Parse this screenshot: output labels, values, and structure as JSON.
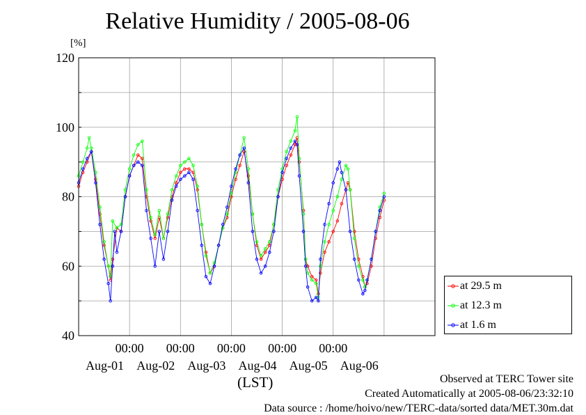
{
  "header": {
    "title": "Relative Humidity / 2005-08-06",
    "unit_label": "[%]",
    "time_label": "(LST)"
  },
  "footer": {
    "line1": "Observed at TERC Tower site",
    "line2": "Created Automatically at 2005-08-06/23:32:10",
    "line3": "Data source : /home/hoivo/new/TERC-data/sorted data/MET.30m.dat"
  },
  "chart_data": {
    "type": "line",
    "title": "Relative Humidity / 2005-08-06",
    "ylabel": "[%]",
    "xlabel": "(LST)",
    "ylim": [
      40,
      120
    ],
    "yticks": [
      "40",
      "60",
      "80",
      "100",
      "120"
    ],
    "xlim": [
      "2005-07-31T00:00",
      "2005-08-07T00:00"
    ],
    "time_ticks": [
      "00:00",
      "00:00",
      "00:00",
      "00:00",
      "00:00"
    ],
    "day_labels": [
      "Aug-01",
      "Aug-02",
      "Aug-03",
      "Aug-04",
      "Aug-05",
      "Aug-06"
    ],
    "grid": true,
    "legend_position": "right",
    "series": [
      {
        "name": "at 29.5 m",
        "color": "#ff0000",
        "points": [
          [
            "2005-07-31T00:00",
            83
          ],
          [
            "2005-07-31T02:00",
            87
          ],
          [
            "2005-07-31T04:00",
            90
          ],
          [
            "2005-07-31T06:00",
            93
          ],
          [
            "2005-07-31T08:00",
            85
          ],
          [
            "2005-07-31T10:00",
            75
          ],
          [
            "2005-07-31T12:00",
            66
          ],
          [
            "2005-07-31T14:00",
            60
          ],
          [
            "2005-07-31T15:00",
            56
          ],
          [
            "2005-07-31T16:00",
            62
          ],
          [
            "2005-07-31T18:00",
            71
          ],
          [
            "2005-07-31T20:00",
            70
          ],
          [
            "2005-07-31T22:00",
            80
          ],
          [
            "2005-08-01T00:00",
            86
          ],
          [
            "2005-08-01T02:00",
            89
          ],
          [
            "2005-08-01T04:00",
            92
          ],
          [
            "2005-08-01T06:00",
            91
          ],
          [
            "2005-08-01T08:00",
            80
          ],
          [
            "2005-08-01T10:00",
            73
          ],
          [
            "2005-08-01T12:00",
            68
          ],
          [
            "2005-08-01T14:00",
            74
          ],
          [
            "2005-08-01T16:00",
            68
          ],
          [
            "2005-08-01T18:00",
            74
          ],
          [
            "2005-08-01T20:00",
            80
          ],
          [
            "2005-08-01T22:00",
            84
          ],
          [
            "2005-08-02T00:00",
            87
          ],
          [
            "2005-08-02T02:00",
            88
          ],
          [
            "2005-08-02T04:00",
            88
          ],
          [
            "2005-08-02T06:00",
            87
          ],
          [
            "2005-08-02T08:00",
            82
          ],
          [
            "2005-08-02T10:00",
            72
          ],
          [
            "2005-08-02T12:00",
            64
          ],
          [
            "2005-08-02T14:00",
            58
          ],
          [
            "2005-08-02T16:00",
            60
          ],
          [
            "2005-08-02T18:00",
            66
          ],
          [
            "2005-08-02T20:00",
            71
          ],
          [
            "2005-08-02T22:00",
            74
          ],
          [
            "2005-08-03T00:00",
            80
          ],
          [
            "2005-08-03T02:00",
            85
          ],
          [
            "2005-08-03T04:00",
            89
          ],
          [
            "2005-08-03T06:00",
            93
          ],
          [
            "2005-08-03T08:00",
            86
          ],
          [
            "2005-08-03T10:00",
            75
          ],
          [
            "2005-08-03T12:00",
            66
          ],
          [
            "2005-08-03T14:00",
            62
          ],
          [
            "2005-08-03T16:00",
            64
          ],
          [
            "2005-08-03T18:00",
            66
          ],
          [
            "2005-08-03T20:00",
            72
          ],
          [
            "2005-08-03T22:00",
            80
          ],
          [
            "2005-08-04T00:00",
            85
          ],
          [
            "2005-08-04T02:00",
            89
          ],
          [
            "2005-08-04T04:00",
            92
          ],
          [
            "2005-08-04T06:00",
            95
          ],
          [
            "2005-08-04T07:00",
            97
          ],
          [
            "2005-08-04T08:00",
            90
          ],
          [
            "2005-08-04T10:00",
            76
          ],
          [
            "2005-08-04T11:00",
            62
          ],
          [
            "2005-08-04T12:00",
            60
          ],
          [
            "2005-08-04T14:00",
            57
          ],
          [
            "2005-08-04T16:00",
            56
          ],
          [
            "2005-08-04T17:00",
            52
          ],
          [
            "2005-08-04T18:00",
            58
          ],
          [
            "2005-08-04T20:00",
            64
          ],
          [
            "2005-08-04T22:00",
            67
          ],
          [
            "2005-08-05T00:00",
            70
          ],
          [
            "2005-08-05T02:00",
            73
          ],
          [
            "2005-08-05T04:00",
            78
          ],
          [
            "2005-08-05T06:00",
            82
          ],
          [
            "2005-08-05T07:00",
            84
          ],
          [
            "2005-08-05T08:00",
            82
          ],
          [
            "2005-08-05T10:00",
            70
          ],
          [
            "2005-08-05T12:00",
            62
          ],
          [
            "2005-08-05T14:00",
            57
          ],
          [
            "2005-08-05T15:00",
            54
          ],
          [
            "2005-08-05T16:00",
            55
          ],
          [
            "2005-08-05T18:00",
            60
          ],
          [
            "2005-08-05T20:00",
            68
          ],
          [
            "2005-08-05T22:00",
            74
          ],
          [
            "2005-08-06T00:00",
            79
          ]
        ]
      },
      {
        "name": "at 12.3 m",
        "color": "#00ff00",
        "points": [
          [
            "2005-07-31T00:00",
            86
          ],
          [
            "2005-07-31T02:00",
            90
          ],
          [
            "2005-07-31T04:00",
            94
          ],
          [
            "2005-07-31T05:00",
            97
          ],
          [
            "2005-07-31T06:00",
            94
          ],
          [
            "2005-07-31T08:00",
            87
          ],
          [
            "2005-07-31T10:00",
            77
          ],
          [
            "2005-07-31T12:00",
            67
          ],
          [
            "2005-07-31T14:00",
            60
          ],
          [
            "2005-07-31T15:00",
            57
          ],
          [
            "2005-07-31T16:00",
            73
          ],
          [
            "2005-07-31T18:00",
            71
          ],
          [
            "2005-07-31T20:00",
            72
          ],
          [
            "2005-07-31T22:00",
            82
          ],
          [
            "2005-08-01T00:00",
            88
          ],
          [
            "2005-08-01T02:00",
            92
          ],
          [
            "2005-08-01T04:00",
            95
          ],
          [
            "2005-08-01T06:00",
            96
          ],
          [
            "2005-08-01T08:00",
            82
          ],
          [
            "2005-08-01T10:00",
            74
          ],
          [
            "2005-08-01T12:00",
            69
          ],
          [
            "2005-08-01T14:00",
            76
          ],
          [
            "2005-08-01T16:00",
            68
          ],
          [
            "2005-08-01T18:00",
            75
          ],
          [
            "2005-08-01T20:00",
            82
          ],
          [
            "2005-08-01T22:00",
            86
          ],
          [
            "2005-08-02T00:00",
            89
          ],
          [
            "2005-08-02T02:00",
            90
          ],
          [
            "2005-08-02T04:00",
            91
          ],
          [
            "2005-08-02T06:00",
            89
          ],
          [
            "2005-08-02T08:00",
            83
          ],
          [
            "2005-08-02T10:00",
            72
          ],
          [
            "2005-08-02T12:00",
            63
          ],
          [
            "2005-08-02T14:00",
            58
          ],
          [
            "2005-08-02T16:00",
            61
          ],
          [
            "2005-08-02T18:00",
            66
          ],
          [
            "2005-08-02T20:00",
            71
          ],
          [
            "2005-08-02T22:00",
            75
          ],
          [
            "2005-08-03T00:00",
            81
          ],
          [
            "2005-08-03T02:00",
            87
          ],
          [
            "2005-08-03T04:00",
            92
          ],
          [
            "2005-08-03T06:00",
            97
          ],
          [
            "2005-08-03T08:00",
            88
          ],
          [
            "2005-08-03T10:00",
            75
          ],
          [
            "2005-08-03T12:00",
            67
          ],
          [
            "2005-08-03T14:00",
            63
          ],
          [
            "2005-08-03T16:00",
            65
          ],
          [
            "2005-08-03T18:00",
            67
          ],
          [
            "2005-08-03T20:00",
            72
          ],
          [
            "2005-08-03T22:00",
            82
          ],
          [
            "2005-08-04T00:00",
            88
          ],
          [
            "2005-08-04T02:00",
            93
          ],
          [
            "2005-08-04T04:00",
            96
          ],
          [
            "2005-08-04T06:00",
            99
          ],
          [
            "2005-08-04T07:00",
            103
          ],
          [
            "2005-08-04T08:00",
            91
          ],
          [
            "2005-08-04T10:00",
            75
          ],
          [
            "2005-08-04T11:00",
            62
          ],
          [
            "2005-08-04T12:00",
            58
          ],
          [
            "2005-08-04T14:00",
            56
          ],
          [
            "2005-08-04T16:00",
            55
          ],
          [
            "2005-08-04T17:00",
            51
          ],
          [
            "2005-08-04T18:00",
            60
          ],
          [
            "2005-08-04T20:00",
            67
          ],
          [
            "2005-08-04T22:00",
            72
          ],
          [
            "2005-08-05T00:00",
            76
          ],
          [
            "2005-08-05T02:00",
            80
          ],
          [
            "2005-08-05T04:00",
            85
          ],
          [
            "2005-08-05T06:00",
            89
          ],
          [
            "2005-08-05T07:00",
            88
          ],
          [
            "2005-08-05T08:00",
            82
          ],
          [
            "2005-08-05T10:00",
            68
          ],
          [
            "2005-08-05T12:00",
            60
          ],
          [
            "2005-08-05T14:00",
            56
          ],
          [
            "2005-08-05T15:00",
            54
          ],
          [
            "2005-08-05T16:00",
            56
          ],
          [
            "2005-08-05T18:00",
            62
          ],
          [
            "2005-08-05T20:00",
            70
          ],
          [
            "2005-08-05T22:00",
            77
          ],
          [
            "2005-08-06T00:00",
            81
          ]
        ]
      },
      {
        "name": "at 1.6 m",
        "color": "#0000ff",
        "points": [
          [
            "2005-07-31T00:00",
            84
          ],
          [
            "2005-07-31T02:00",
            88
          ],
          [
            "2005-07-31T04:00",
            91
          ],
          [
            "2005-07-31T06:00",
            93
          ],
          [
            "2005-07-31T08:00",
            84
          ],
          [
            "2005-07-31T10:00",
            72
          ],
          [
            "2005-07-31T12:00",
            62
          ],
          [
            "2005-07-31T14:00",
            55
          ],
          [
            "2005-07-31T15:00",
            50
          ],
          [
            "2005-07-31T16:00",
            60
          ],
          [
            "2005-07-31T17:00",
            70
          ],
          [
            "2005-07-31T18:00",
            64
          ],
          [
            "2005-07-31T20:00",
            70
          ],
          [
            "2005-07-31T22:00",
            80
          ],
          [
            "2005-08-01T00:00",
            86
          ],
          [
            "2005-08-01T02:00",
            89
          ],
          [
            "2005-08-01T04:00",
            90
          ],
          [
            "2005-08-01T06:00",
            89
          ],
          [
            "2005-08-01T08:00",
            76
          ],
          [
            "2005-08-01T10:00",
            68
          ],
          [
            "2005-08-01T12:00",
            60
          ],
          [
            "2005-08-01T14:00",
            70
          ],
          [
            "2005-08-01T16:00",
            62
          ],
          [
            "2005-08-01T18:00",
            70
          ],
          [
            "2005-08-01T20:00",
            79
          ],
          [
            "2005-08-01T22:00",
            83
          ],
          [
            "2005-08-02T00:00",
            85
          ],
          [
            "2005-08-02T02:00",
            86
          ],
          [
            "2005-08-02T04:00",
            87
          ],
          [
            "2005-08-02T06:00",
            85
          ],
          [
            "2005-08-02T08:00",
            76
          ],
          [
            "2005-08-02T10:00",
            66
          ],
          [
            "2005-08-02T12:00",
            57
          ],
          [
            "2005-08-02T14:00",
            55
          ],
          [
            "2005-08-02T16:00",
            60
          ],
          [
            "2005-08-02T18:00",
            66
          ],
          [
            "2005-08-02T20:00",
            72
          ],
          [
            "2005-08-02T22:00",
            77
          ],
          [
            "2005-08-03T00:00",
            83
          ],
          [
            "2005-08-03T02:00",
            88
          ],
          [
            "2005-08-03T04:00",
            92
          ],
          [
            "2005-08-03T06:00",
            94
          ],
          [
            "2005-08-03T08:00",
            84
          ],
          [
            "2005-08-03T10:00",
            70
          ],
          [
            "2005-08-03T12:00",
            62
          ],
          [
            "2005-08-03T14:00",
            58
          ],
          [
            "2005-08-03T16:00",
            60
          ],
          [
            "2005-08-03T18:00",
            64
          ],
          [
            "2005-08-03T20:00",
            70
          ],
          [
            "2005-08-03T22:00",
            80
          ],
          [
            "2005-08-04T00:00",
            87
          ],
          [
            "2005-08-04T02:00",
            91
          ],
          [
            "2005-08-04T04:00",
            94
          ],
          [
            "2005-08-04T06:00",
            96
          ],
          [
            "2005-08-04T07:00",
            95
          ],
          [
            "2005-08-04T08:00",
            86
          ],
          [
            "2005-08-04T10:00",
            70
          ],
          [
            "2005-08-04T11:00",
            60
          ],
          [
            "2005-08-04T12:00",
            54
          ],
          [
            "2005-08-04T14:00",
            50
          ],
          [
            "2005-08-04T16:00",
            51
          ],
          [
            "2005-08-04T17:00",
            50
          ],
          [
            "2005-08-04T18:00",
            62
          ],
          [
            "2005-08-04T20:00",
            72
          ],
          [
            "2005-08-04T22:00",
            78
          ],
          [
            "2005-08-05T00:00",
            84
          ],
          [
            "2005-08-05T02:00",
            88
          ],
          [
            "2005-08-05T03:00",
            90
          ],
          [
            "2005-08-05T04:00",
            87
          ],
          [
            "2005-08-05T06:00",
            82
          ],
          [
            "2005-08-05T08:00",
            70
          ],
          [
            "2005-08-05T10:00",
            62
          ],
          [
            "2005-08-05T12:00",
            56
          ],
          [
            "2005-08-05T14:00",
            52
          ],
          [
            "2005-08-05T15:00",
            53
          ],
          [
            "2005-08-05T16:00",
            56
          ],
          [
            "2005-08-05T18:00",
            62
          ],
          [
            "2005-08-05T20:00",
            70
          ],
          [
            "2005-08-05T22:00",
            76
          ],
          [
            "2005-08-06T00:00",
            80
          ]
        ]
      }
    ]
  }
}
